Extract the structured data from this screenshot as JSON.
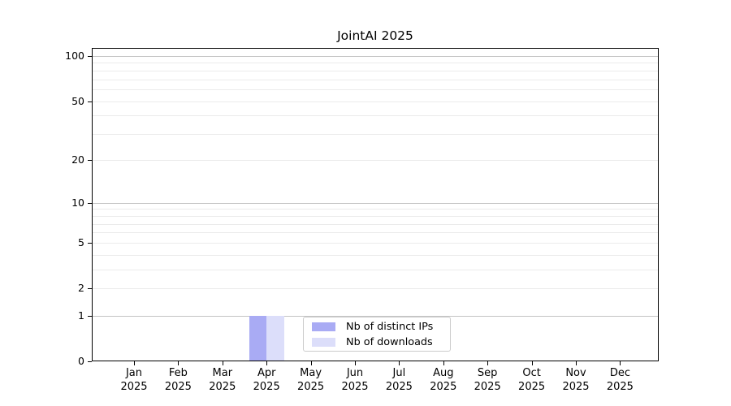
{
  "chart_data": {
    "type": "bar",
    "title": "JointAI 2025",
    "x_axis": {
      "months": [
        "Jan",
        "Feb",
        "Mar",
        "Apr",
        "May",
        "Jun",
        "Jul",
        "Aug",
        "Sep",
        "Oct",
        "Nov",
        "Dec"
      ],
      "year": "2025"
    },
    "y_axis": {
      "scale": "log1p",
      "tick_labels": [
        0,
        1,
        2,
        5,
        10,
        20,
        50,
        100
      ],
      "major_gridlines": [
        1,
        10,
        100
      ],
      "minor_gridlines": [
        2,
        3,
        4,
        5,
        6,
        7,
        8,
        9,
        20,
        30,
        40,
        50,
        60,
        70,
        80,
        90
      ],
      "top_value": 113
    },
    "series": [
      {
        "name": "Nb of distinct IPs",
        "color": "#a9abf4",
        "values": [
          0,
          0,
          0,
          1,
          0,
          0,
          0,
          0,
          0,
          0,
          0,
          0
        ]
      },
      {
        "name": "Nb of downloads",
        "color": "#dcdefa",
        "values": [
          0,
          0,
          0,
          1,
          0,
          0,
          0,
          0,
          0,
          0,
          0,
          0
        ]
      }
    ],
    "legend": {
      "location": "lower center",
      "entries": [
        "Nb of distinct IPs",
        "Nb of downloads"
      ]
    },
    "colors": {
      "major_grid": "#c3c3c3",
      "minor_grid": "#ebebeb",
      "spine": "#000000",
      "legend_border": "#cccccc",
      "background": "#ffffff"
    },
    "grid": true
  }
}
